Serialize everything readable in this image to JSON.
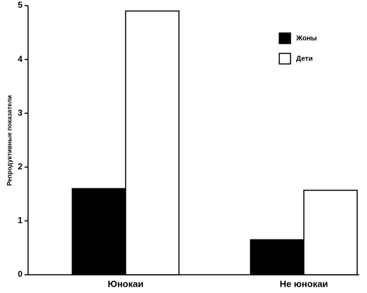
{
  "chart_data": {
    "type": "bar",
    "y_label": "Репродуктивные показатели",
    "categories": [
      "Юнокаи",
      "Не юнокаи"
    ],
    "series": [
      {
        "name": "Жоны",
        "color": "#000000",
        "values": [
          1.6,
          0.65
        ]
      },
      {
        "name": "Дети",
        "color": "#ffffff",
        "values": [
          4.9,
          1.57
        ]
      }
    ],
    "ylim": [
      0,
      5
    ],
    "yticks": [
      0,
      1,
      2,
      3,
      4,
      5
    ],
    "grid": false,
    "legend": "upper right"
  }
}
